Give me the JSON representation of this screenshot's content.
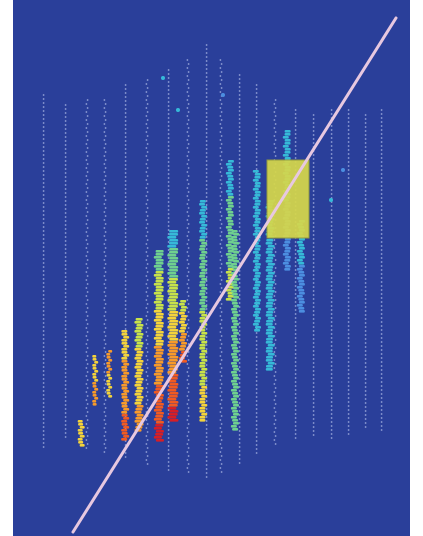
{
  "image": {
    "kind": "particle-detector-event-display",
    "colors": {
      "background": "#2a3f9a",
      "channel_dots": "#c9d3f4",
      "track": "#e7c8e0",
      "hot_box": "#d7d84a",
      "hot_box_edge": "#9aa23a",
      "hit_palette": [
        "#d61e26",
        "#f05a22",
        "#f79a2a",
        "#f4d33b",
        "#c7e24a",
        "#6fd08f",
        "#36b9d8",
        "#4c8ee0"
      ]
    },
    "icons": [
      "muon-track-line",
      "energy-deposit-box"
    ]
  }
}
